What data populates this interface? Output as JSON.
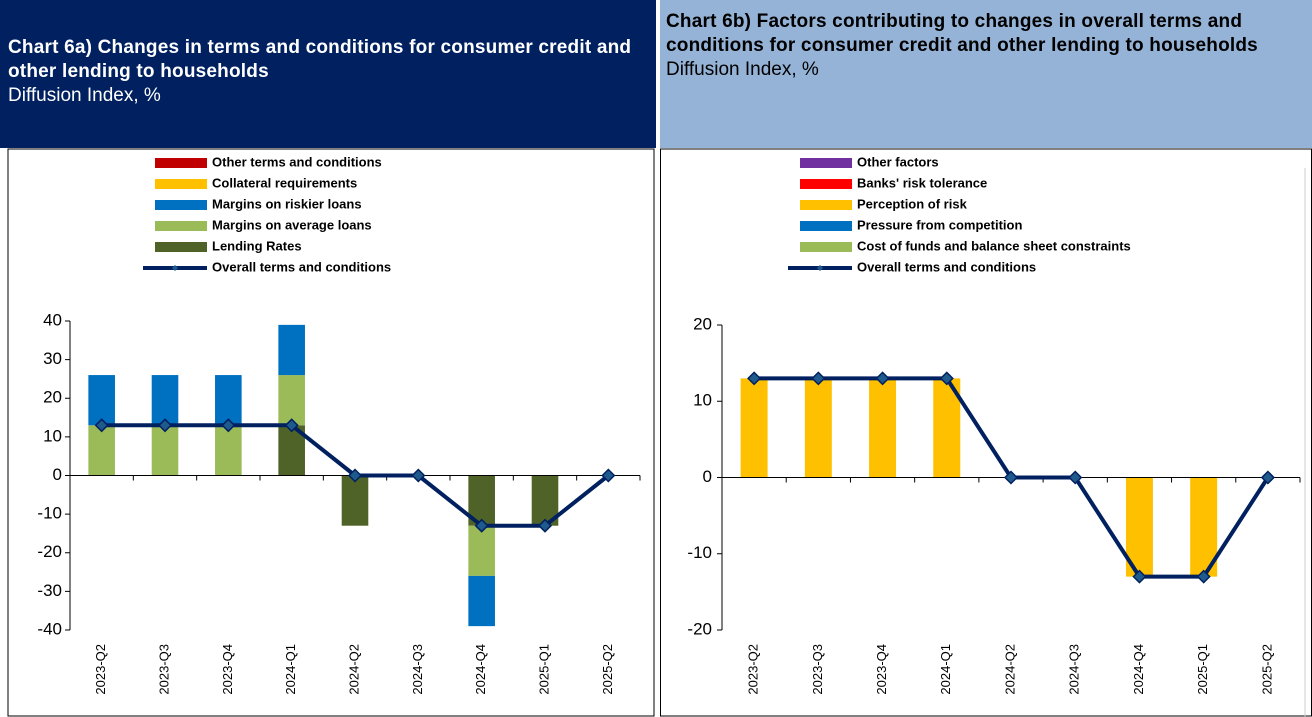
{
  "chart_data": [
    {
      "type": "bar",
      "stacked": true,
      "title": "Chart 6a) Changes in terms and conditions for consumer credit and other lending to households",
      "subtitle": "Diffusion Index, %",
      "categories": [
        "2023-Q2",
        "2023-Q3",
        "2023-Q4",
        "2024-Q1",
        "2024-Q2",
        "2024-Q3",
        "2024-Q4",
        "2025-Q1",
        "2025-Q2"
      ],
      "series": [
        {
          "name": "Lending Rates",
          "color": "#4f6228",
          "values": [
            0,
            0,
            0,
            13,
            -13,
            0,
            -13,
            -13,
            0
          ]
        },
        {
          "name": "Margins on average loans",
          "color": "#9bbb59",
          "values": [
            13,
            13,
            13,
            13,
            0,
            0,
            -13,
            0,
            0
          ]
        },
        {
          "name": "Margins on riskier loans",
          "color": "#0070c0",
          "values": [
            13,
            13,
            13,
            13,
            0,
            0,
            -13,
            0,
            0
          ]
        },
        {
          "name": "Collateral requirements",
          "color": "#ffc000",
          "values": [
            0,
            0,
            0,
            0,
            0,
            0,
            0,
            0,
            0
          ]
        },
        {
          "name": "Other terms and conditions",
          "color": "#c00000",
          "values": [
            0,
            0,
            0,
            0,
            0,
            0,
            0,
            0,
            0
          ]
        },
        {
          "name": "Overall terms and conditions",
          "type": "line",
          "color": "#002060",
          "values": [
            13,
            13,
            13,
            13,
            0,
            0,
            -13,
            -13,
            0
          ]
        }
      ],
      "ylim": [
        -40,
        40
      ],
      "yticks": [
        -40,
        -30,
        -20,
        -10,
        0,
        10,
        20,
        30,
        40
      ]
    },
    {
      "type": "bar",
      "stacked": true,
      "title": "Chart 6b) Factors contributing to changes in overall terms and conditions for consumer credit and other lending to households",
      "subtitle": "Diffusion Index, %",
      "categories": [
        "2023-Q2",
        "2023-Q3",
        "2023-Q4",
        "2024-Q1",
        "2024-Q2",
        "2024-Q3",
        "2024-Q4",
        "2025-Q1",
        "2025-Q2"
      ],
      "series": [
        {
          "name": "Cost of funds and balance sheet constraints",
          "color": "#9bbb59",
          "values": [
            0,
            0,
            0,
            0,
            0,
            0,
            0,
            0,
            0
          ]
        },
        {
          "name": "Pressure from competition",
          "color": "#0070c0",
          "values": [
            0,
            0,
            0,
            0,
            0,
            0,
            0,
            0,
            0
          ]
        },
        {
          "name": "Perception of risk",
          "color": "#ffc000",
          "values": [
            13,
            13,
            13,
            13,
            0,
            0,
            -13,
            -13,
            0
          ]
        },
        {
          "name": "Banks' risk tolerance",
          "color": "#ff0000",
          "values": [
            0,
            0,
            0,
            0,
            0,
            0,
            0,
            0,
            0
          ]
        },
        {
          "name": "Other factors",
          "color": "#7030a0",
          "values": [
            0,
            0,
            0,
            0,
            0,
            0,
            0,
            0,
            0
          ]
        },
        {
          "name": "Overall terms and conditions",
          "type": "line",
          "color": "#002060",
          "values": [
            13,
            13,
            13,
            13,
            0,
            0,
            -13,
            -13,
            0
          ]
        }
      ],
      "ylim": [
        -20,
        20
      ],
      "yticks": [
        -20,
        -10,
        0,
        10,
        20
      ]
    }
  ]
}
